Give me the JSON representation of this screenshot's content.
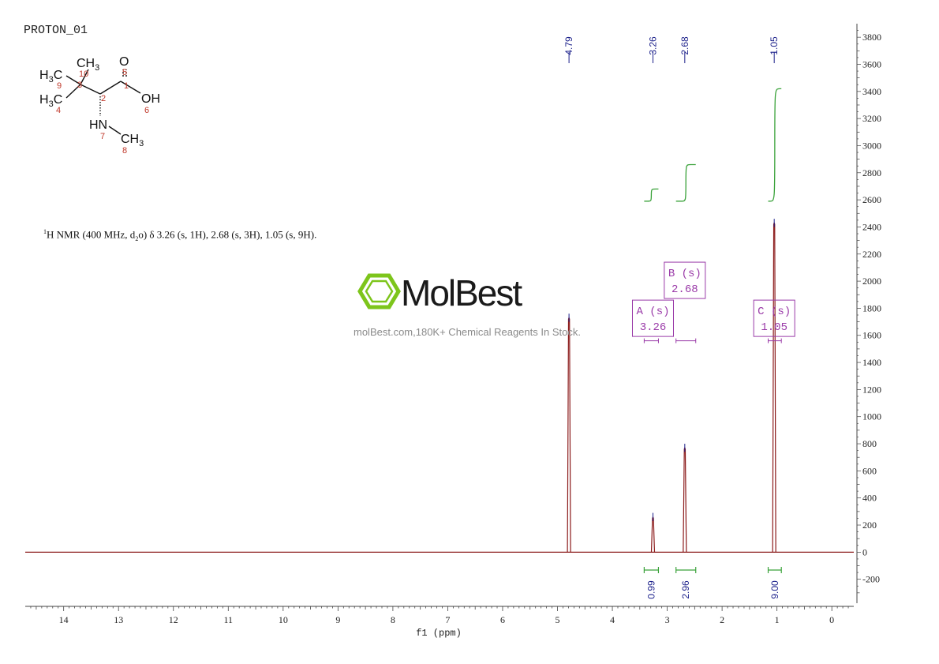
{
  "spectrum": {
    "title": "PROTON_01",
    "description": {
      "iso": "1",
      "before": "H NMR (400 MHz, d",
      "sub": "2",
      "after": "o) δ 3.26 (s, 1H), 2.68 (s, 3H), 1.05 (s, 9H)."
    }
  },
  "watermark": {
    "brand": "MolBest",
    "tagline": "molBest.com,180K+ Chemical Reagents In Stock.",
    "logo_color": "#7dc51b"
  },
  "molecule": {
    "labels": {
      "ch3_top": "CH3",
      "o_top": "O",
      "h3c_9": "H3C",
      "h3c_4": "H3C",
      "oh": "OH",
      "hn": "HN",
      "ch3_8": "CH3"
    },
    "atom_numbers": [
      "10",
      "9",
      "3",
      "2",
      "1",
      "5",
      "4",
      "6",
      "7",
      "8"
    ]
  },
  "chart_data": {
    "type": "line",
    "xlabel": "f1 (ppm)",
    "xlim": [
      14.7,
      -0.4
    ],
    "ylim": [
      -400,
      3900
    ],
    "x_ticks": [
      14,
      13,
      12,
      11,
      10,
      9,
      8,
      7,
      6,
      5,
      4,
      3,
      2,
      1,
      0
    ],
    "y_ticks": [
      -200,
      0,
      200,
      400,
      600,
      800,
      1000,
      1200,
      1400,
      1600,
      1800,
      2000,
      2200,
      2400,
      2600,
      2800,
      3000,
      3200,
      3400,
      3600,
      3800
    ],
    "peaks": [
      {
        "ppm": 4.79,
        "height": 1760,
        "label": "4.79"
      },
      {
        "ppm": 3.26,
        "height": 290,
        "label": "3.26"
      },
      {
        "ppm": 2.68,
        "height": 800,
        "label": "2.68"
      },
      {
        "ppm": 1.05,
        "height": 2460,
        "label": "1.05"
      }
    ],
    "multiplets": [
      {
        "id": "A",
        "text1": "A (s)",
        "text2": "3.26",
        "ppm": 3.26,
        "range": [
          3.42,
          3.16
        ],
        "box_y_top": 1860
      },
      {
        "id": "B",
        "text1": "B (s)",
        "text2": "2.68",
        "ppm": 2.68,
        "range": [
          2.84,
          2.48
        ],
        "box_y_top": 2140
      },
      {
        "id": "C",
        "text1": "C (s)",
        "text2": "1.05",
        "ppm": 1.05,
        "range": [
          1.16,
          0.92
        ],
        "box_y_top": 1860
      }
    ],
    "integrals": [
      {
        "value": "0.99",
        "range": [
          3.42,
          3.16
        ],
        "curve_start": 2590,
        "curve_end": 2680
      },
      {
        "value": "2.96",
        "range": [
          2.84,
          2.48
        ],
        "curve_start": 2590,
        "curve_end": 2860
      },
      {
        "value": "9.00",
        "range": [
          1.16,
          0.92
        ],
        "curve_start": 2590,
        "curve_end": 3420
      }
    ],
    "colors": {
      "spectrum": "#8b1a1a",
      "integral": "#3aa23a",
      "peak_label": "#1a1f8a",
      "multiplet": "#9a3aa8",
      "axis": "#444444"
    }
  }
}
